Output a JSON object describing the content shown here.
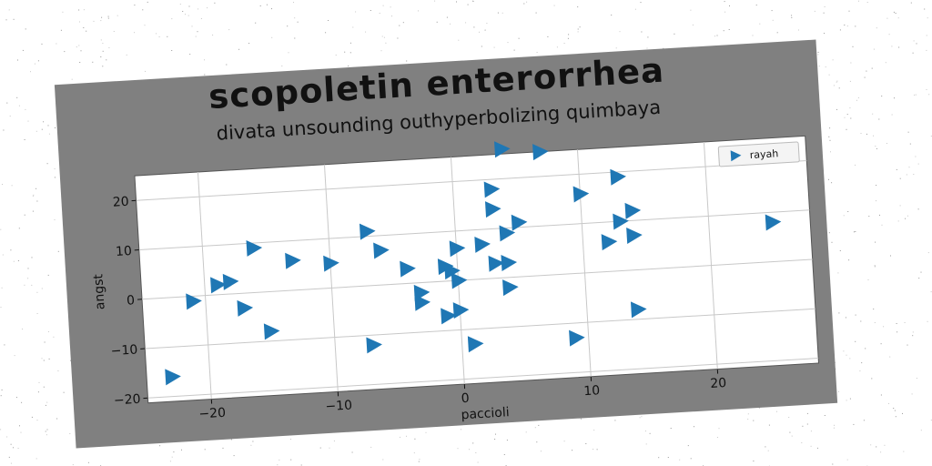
{
  "chart_data": {
    "type": "scatter",
    "title": "scopoletin enterorrhea",
    "subtitle": "divata unsounding outhyperbolizing quimbaya",
    "xlabel": "paccioli",
    "ylabel": "angst",
    "xlim": [
      -25,
      28
    ],
    "ylim": [
      -21,
      25
    ],
    "xticks": [
      -20,
      -10,
      0,
      10,
      20
    ],
    "yticks": [
      -20,
      -10,
      0,
      10,
      20
    ],
    "xtick_labels": [
      "−20",
      "−10",
      "0",
      "10",
      "20"
    ],
    "ytick_labels": [
      "−20",
      "−10",
      "0",
      "10",
      "20"
    ],
    "grid": true,
    "legend_position": "top-right",
    "marker": "triangle-right",
    "series": [
      {
        "name": "rayah",
        "color": "#1f77b4",
        "points": [
          [
            -23,
            -16
          ],
          [
            -21,
            -1
          ],
          [
            -19,
            2
          ],
          [
            -18,
            2.5
          ],
          [
            -17,
            -3
          ],
          [
            -16,
            9
          ],
          [
            -15,
            -8
          ],
          [
            -13,
            6
          ],
          [
            -10,
            5
          ],
          [
            -7,
            11
          ],
          [
            -7,
            -12
          ],
          [
            -6,
            7
          ],
          [
            -4,
            3
          ],
          [
            -3,
            -2
          ],
          [
            -3,
            -4
          ],
          [
            -1,
            3
          ],
          [
            -1,
            -7
          ],
          [
            -0.5,
            2
          ],
          [
            0,
            -6
          ],
          [
            0,
            0
          ],
          [
            0,
            6.5
          ],
          [
            1,
            -13
          ],
          [
            2,
            7
          ],
          [
            3,
            3
          ],
          [
            3,
            14
          ],
          [
            3,
            18
          ],
          [
            4,
            9
          ],
          [
            4,
            3
          ],
          [
            4,
            -2
          ],
          [
            4,
            26
          ],
          [
            5,
            11
          ],
          [
            7,
            25
          ],
          [
            9,
            -13
          ],
          [
            10,
            16
          ],
          [
            12,
            6
          ],
          [
            13,
            10
          ],
          [
            13,
            19
          ],
          [
            14,
            7
          ],
          [
            14,
            12
          ],
          [
            14,
            -8
          ],
          [
            25,
            8
          ]
        ]
      }
    ]
  }
}
